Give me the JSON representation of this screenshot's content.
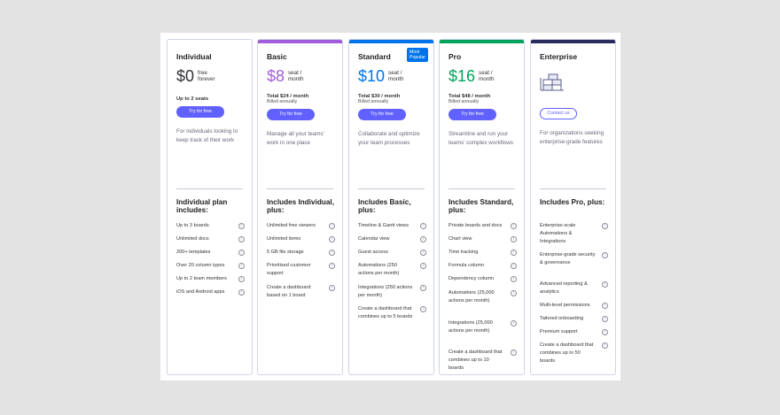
{
  "colors": {
    "basic": "#a25ddc",
    "standard": "#0073ea",
    "pro": "#00a359",
    "enterprise": "#2b2c5e",
    "cta": "#6161ff"
  },
  "plans": [
    {
      "id": "individual",
      "name": "Individual",
      "price": "$0",
      "per": "free forever",
      "seats": "Up to 2 seats",
      "cta": "Try for free",
      "description": "For individuals looking to keep track of their work",
      "includes": "Individual plan includes:",
      "features": [
        "Up to 3 boards",
        "Unlimited docs",
        "200+ templates",
        "Over 20 column types",
        "Up to 2 team members",
        "iOS and Android apps"
      ]
    },
    {
      "id": "basic",
      "name": "Basic",
      "price": "$8",
      "per": "seat / month",
      "total": "Total $24 / month",
      "billed": "Billed annually",
      "cta": "Try for free",
      "description": "Manage all your teams' work in one place",
      "includes": "Includes Individual, plus:",
      "features": [
        "Unlimited free viewers",
        "Unlimited items",
        "5 GB file storage",
        "Prioritised customer support",
        "Create a dashboard based on 1 board"
      ]
    },
    {
      "id": "standard",
      "name": "Standard",
      "badge": "Most Popular",
      "price": "$10",
      "per": "seat / month",
      "total": "Total $30 / month",
      "billed": "Billed annually",
      "cta": "Try for free",
      "description": "Collaborate and optimize your team processes",
      "includes": "Includes Basic, plus:",
      "features": [
        "Timeline & Gantt views",
        "Calendar view",
        "Guest access",
        "Automations (250 actions per month)",
        "Integrations (250 actions per month)",
        "Create a dashboard that combines up to 5 boards"
      ]
    },
    {
      "id": "pro",
      "name": "Pro",
      "price": "$16",
      "per": "seat / month",
      "total": "Total $48 / month",
      "billed": "Billed annually",
      "cta": "Try for free",
      "description": "Streamline and run your teams' complex workflows",
      "includes": "Includes Standard, plus:",
      "features": [
        "Private boards and docs",
        "Chart view",
        "Time tracking",
        "Formula column",
        "Dependency column",
        "Automations (25,000 actions per month)",
        "Integrations (25,000 actions per month)",
        "Create a dashboard that combines up to 10 boards"
      ]
    },
    {
      "id": "enterprise",
      "name": "Enterprise",
      "cta": "Contact us",
      "description": "For organizations seeking enterprise-grade features",
      "includes": "Includes Pro, plus:",
      "features": [
        "Enterprise-scale Automations & Integrations",
        "Enterprise-grade security & governance",
        "Advanced reporting & analytics",
        "Multi-level permissions",
        "Tailored onboarding",
        "Premium support",
        "Create a dashboard that combines up to 50 boards"
      ]
    }
  ],
  "info_glyph": "i"
}
